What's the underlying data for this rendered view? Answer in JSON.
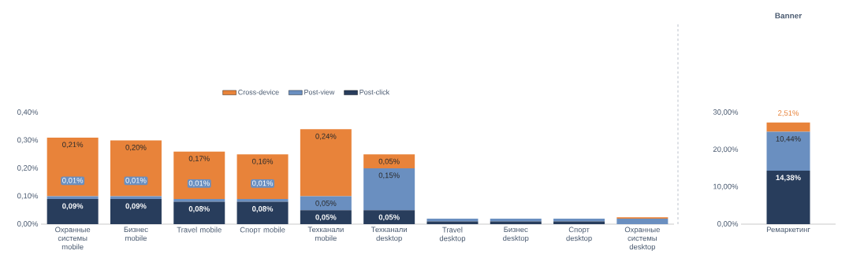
{
  "chart_data": [
    {
      "type": "bar",
      "stacked": true,
      "legend": "top",
      "categories": [
        "Охранные системы mobile",
        "Бизнес mobile",
        "Travel mobile",
        "Спорт mobile",
        "Техканали mobile",
        "Техканали desktop",
        "Travel desktop",
        "Бизнес desktop",
        "Спорт desktop",
        "Охранные системы desktop"
      ],
      "ylim": [
        0,
        0.4
      ],
      "yticks": [
        {
          "value": 0,
          "label": "0,00%"
        },
        {
          "value": 0.1,
          "label": "0,10%"
        },
        {
          "value": 0.2,
          "label": "0,20%"
        },
        {
          "value": 0.3,
          "label": "0,30%"
        },
        {
          "value": 0.4,
          "label": "0,40%"
        }
      ],
      "series": [
        {
          "name": "Post-click",
          "color": "#283d5c",
          "values": [
            0.09,
            0.09,
            0.08,
            0.08,
            0.05,
            0.05,
            0.01,
            0.01,
            0.01,
            0
          ],
          "value_labels": [
            "0,09%",
            "0,09%",
            "0,08%",
            "0,08%",
            "0,05%",
            "0,05%",
            null,
            null,
            null,
            null
          ]
        },
        {
          "name": "Post-view",
          "color": "#6a8fc0",
          "values": [
            0.01,
            0.01,
            0.01,
            0.01,
            0.05,
            0.15,
            0.01,
            0.01,
            0.01,
            0.02
          ],
          "value_labels": [
            "0,01%",
            "0,01%",
            "0,01%",
            "0,01%",
            "0,05%",
            "0,15%",
            null,
            null,
            null,
            null
          ]
        },
        {
          "name": "Cross-device",
          "color": "#e8833a",
          "values": [
            0.21,
            0.2,
            0.17,
            0.16,
            0.24,
            0.05,
            0,
            0,
            0,
            0.005
          ],
          "value_labels": [
            "0,21%",
            "0,20%",
            "0,17%",
            "0,16%",
            "0,24%",
            "0,05%",
            null,
            null,
            null,
            null
          ]
        }
      ]
    },
    {
      "type": "bar",
      "stacked": true,
      "title": "Banner",
      "categories": [
        "Ремаркетинг"
      ],
      "ylim": [
        0,
        30
      ],
      "yticks": [
        {
          "value": 0,
          "label": "0,00%"
        },
        {
          "value": 10,
          "label": "10,00%"
        },
        {
          "value": 20,
          "label": "20,00%"
        },
        {
          "value": 30,
          "label": "30,00%"
        }
      ],
      "series": [
        {
          "color": "#283d5c",
          "values": [
            14.38
          ],
          "value_labels": [
            "14,38%"
          ]
        },
        {
          "color": "#6a8fc0",
          "values": [
            10.44
          ],
          "value_labels": [
            "10,44%"
          ]
        },
        {
          "color": "#e8833a",
          "values": [
            2.51
          ],
          "value_labels": [
            "2,51%"
          ]
        }
      ]
    }
  ]
}
